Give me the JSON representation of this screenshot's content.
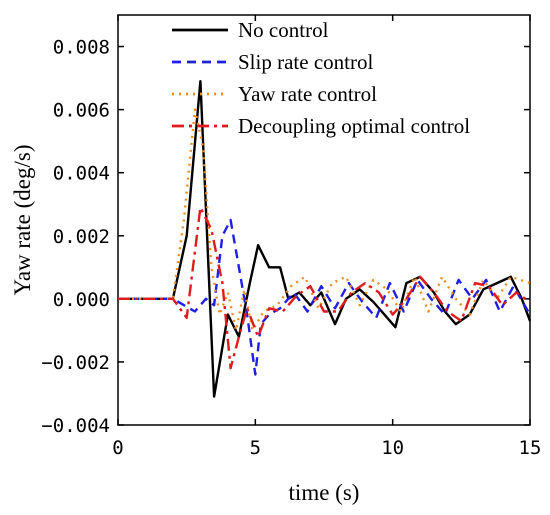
{
  "chart_data": {
    "type": "line",
    "title": "",
    "xlabel": "time (s)",
    "ylabel": "Yaw rate (deg/s)",
    "xlim": [
      0,
      15
    ],
    "ylim": [
      -0.004,
      0.009
    ],
    "x_ticks": [
      0,
      5,
      10,
      15
    ],
    "x_tick_labels": [
      "0",
      "5",
      "10",
      "15"
    ],
    "y_ticks": [
      -0.004,
      -0.002,
      0.0,
      0.002,
      0.004,
      0.006,
      0.008
    ],
    "y_tick_labels": [
      "−0.004",
      "−0.002",
      "0.000",
      "0.002",
      "0.004",
      "0.006",
      "0.008"
    ],
    "grid": false,
    "legend_position": "top",
    "series": [
      {
        "name": "No control",
        "color": "#000000",
        "dash": "solid",
        "x": [
          0,
          2,
          2.5,
          3.0,
          3.5,
          4.0,
          4.4,
          4.8,
          5.1,
          5.5,
          5.9,
          6.2,
          6.6,
          7.0,
          7.4,
          7.9,
          8.3,
          8.8,
          9.3,
          9.7,
          10.1,
          10.5,
          11.0,
          11.5,
          11.9,
          12.3,
          12.8,
          13.3,
          13.8,
          14.3,
          14.7,
          15
        ],
        "values": [
          0,
          0,
          0.002,
          0.0069,
          -0.0031,
          -0.0005,
          -0.0012,
          0.0005,
          0.0017,
          0.001,
          0.001,
          0.0,
          0.0002,
          -0.0002,
          0.0002,
          -0.0008,
          0.0,
          0.0003,
          -0.0001,
          -0.0005,
          -0.0009,
          0.0005,
          0.0007,
          0.0002,
          -0.0004,
          -0.0008,
          -0.0005,
          0.0003,
          0.0005,
          0.0007,
          0.0,
          -0.0007
        ]
      },
      {
        "name": "Slip rate control",
        "color": "#1f1fe6",
        "dash": "dash",
        "x": [
          0,
          2,
          2.8,
          3.2,
          3.5,
          3.8,
          4.1,
          4.4,
          4.7,
          5.0,
          5.2,
          5.5,
          5.9,
          6.4,
          6.9,
          7.4,
          7.9,
          8.4,
          8.9,
          9.4,
          9.9,
          10.4,
          10.9,
          11.4,
          11.9,
          12.4,
          12.9,
          13.4,
          13.9,
          14.4,
          15
        ],
        "values": [
          0,
          0,
          -0.0004,
          0.0,
          -0.0002,
          0.002,
          0.0025,
          0.001,
          -0.0005,
          -0.0024,
          -0.0008,
          -0.0005,
          -0.0003,
          0.0002,
          -0.0004,
          0.0004,
          -0.0003,
          0.0005,
          -0.0001,
          -0.0006,
          0.0005,
          -0.0004,
          0.0006,
          0.0,
          -0.0005,
          0.0006,
          0.0,
          0.0006,
          -0.0004,
          0.0004,
          -0.0005
        ]
      },
      {
        "name": "Yaw  rate control",
        "color": "#f08c1e",
        "dash": "dot",
        "x": [
          0,
          2,
          2.4,
          2.8,
          3.1,
          3.4,
          3.7,
          4.0,
          4.3,
          4.6,
          4.9,
          5.3,
          5.8,
          6.3,
          6.8,
          7.3,
          7.8,
          8.3,
          8.8,
          9.3,
          9.8,
          10.3,
          10.8,
          11.3,
          11.8,
          12.3,
          12.8,
          13.3,
          13.8,
          14.3,
          15
        ],
        "values": [
          0,
          0,
          0.0025,
          0.006,
          0.0048,
          0.001,
          -0.0005,
          0.0002,
          -0.001,
          0.0003,
          -0.001,
          -0.0004,
          -0.0002,
          0.0004,
          0.0007,
          -0.0003,
          0.0005,
          0.0007,
          -0.0002,
          0.0006,
          0.0003,
          -0.0004,
          0.0007,
          -0.0004,
          0.0007,
          0.0,
          -0.0005,
          0.0006,
          0.0,
          0.0007,
          0.0005
        ]
      },
      {
        "name": "Decoupling optimal control",
        "color": "#e01b1b",
        "dash": "dashdot",
        "x": [
          0,
          2,
          2.5,
          3.0,
          3.4,
          3.8,
          4.1,
          4.4,
          4.7,
          5.1,
          5.5,
          6.0,
          6.5,
          7.0,
          7.5,
          8.0,
          8.5,
          9.0,
          9.5,
          10.0,
          10.5,
          11.0,
          11.5,
          12.0,
          12.5,
          13.0,
          13.5,
          14.0,
          14.5,
          15
        ],
        "values": [
          0,
          0,
          -0.0006,
          0.0029,
          0.0022,
          0.0005,
          -0.0022,
          -0.0012,
          -0.0003,
          -0.0012,
          -0.0003,
          -0.0004,
          0.0001,
          0.0004,
          -0.0004,
          -0.0004,
          0.0002,
          0.0005,
          0.0002,
          -0.0005,
          0.0,
          0.0007,
          0.0002,
          -0.0004,
          -0.0007,
          0.0005,
          0.0004,
          -0.0002,
          0.0002,
          -0.0001
        ]
      }
    ]
  }
}
